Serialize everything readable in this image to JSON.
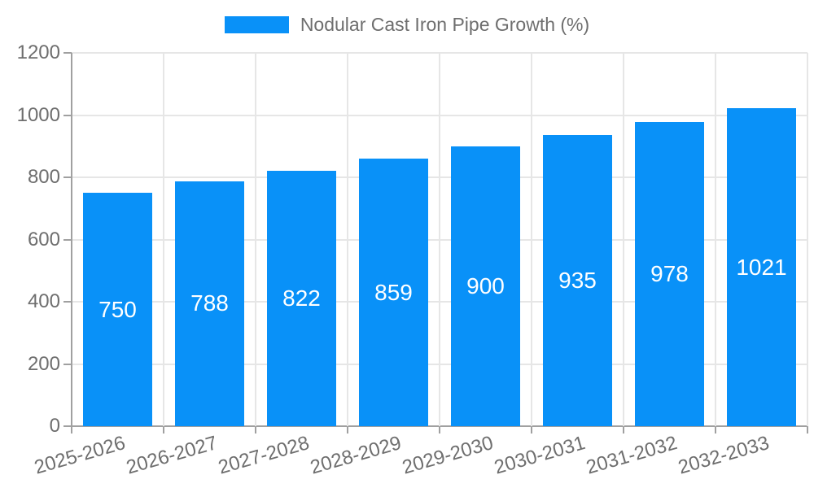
{
  "chart_data": {
    "type": "bar",
    "title": "Nodular Cast Iron Pipe Growth (%)",
    "legend_position": "top",
    "categories": [
      "2025-2026",
      "2026-2027",
      "2027-2028",
      "2028-2029",
      "2029-2030",
      "2030-2031",
      "2031-2032",
      "2032-2033"
    ],
    "series": [
      {
        "name": "Nodular Cast Iron Pipe Growth (%)",
        "values": [
          750,
          788,
          822,
          859,
          900,
          935,
          978,
          1021
        ]
      }
    ],
    "bar_value_labels": [
      "750",
      "788",
      "822",
      "859",
      "900",
      "935",
      "978",
      "1021"
    ],
    "xlabel": "",
    "ylabel": "",
    "ylim": [
      0,
      1200
    ],
    "yticks": [
      0,
      200,
      400,
      600,
      800,
      1000,
      1200
    ],
    "grid": true,
    "colors": {
      "bar": "#0991f8",
      "bar_value_text": "#ffffff",
      "tick_text": "#6e6e6e",
      "gridline": "#e6e6e6",
      "axis_line": "#a0a0a0"
    }
  }
}
